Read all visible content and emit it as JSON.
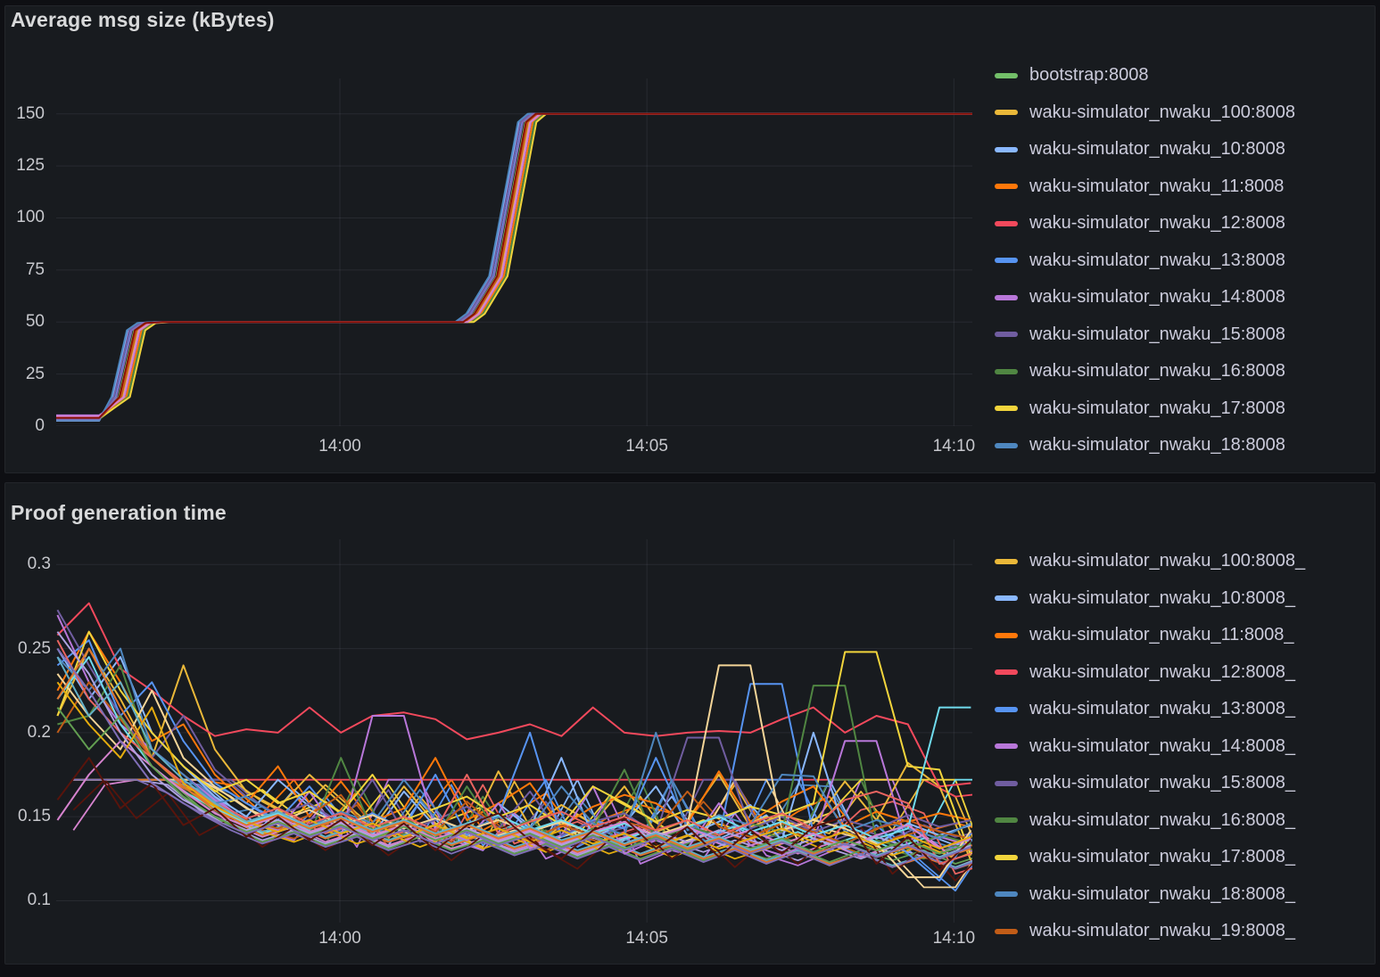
{
  "theme": {
    "page_bg": "#0e0f13",
    "panel_bg": "#181b1f",
    "panel_border": "#23262b",
    "title_color": "#d8d9da",
    "legend_text_color": "#ccccdc",
    "axis_text_color": "#c7c8cd",
    "grid_color": "rgba(204,204,220,0.09)"
  },
  "panels": [
    {
      "title": "Average msg size (kBytes)"
    },
    {
      "title": "Proof generation time"
    }
  ],
  "chart_data": [
    {
      "type": "line",
      "title": "Average msg size (kBytes)",
      "y_unit": "kBytes",
      "x_unit": "minutes relative to 14:00",
      "grid": true,
      "legend_position": "right",
      "xlim": [
        -4.62,
        10.3
      ],
      "ylim": [
        0,
        167
      ],
      "xticks": [
        {
          "t": 0,
          "label": "14:00"
        },
        {
          "t": 5,
          "label": "14:05"
        },
        {
          "t": 10,
          "label": "14:10"
        }
      ],
      "yticks": [
        {
          "v": 0,
          "label": "0"
        },
        {
          "v": 25,
          "label": "25"
        },
        {
          "v": 50,
          "label": "50"
        },
        {
          "v": 75,
          "label": "75"
        },
        {
          "v": 100,
          "label": "100"
        },
        {
          "v": 125,
          "label": "125"
        },
        {
          "v": 150,
          "label": "150"
        }
      ],
      "pattern_points": [
        [
          -4.62,
          "v0"
        ],
        [
          -3.92,
          "v0"
        ],
        [
          -3.6,
          14
        ],
        [
          -3.35,
          46
        ],
        [
          -3.18,
          49.5
        ],
        [
          -2.9,
          50
        ],
        [
          2.0,
          50
        ],
        [
          2.18,
          54
        ],
        [
          2.55,
          72
        ],
        [
          3.02,
          146
        ],
        [
          3.18,
          150
        ],
        [
          10.3,
          150
        ]
      ],
      "series": [
        {
          "label": "bootstrap:8008",
          "color": "#73BF69",
          "dx": 0.0,
          "v0": 4.8
        },
        {
          "label": "waku-simulator_nwaku_100:8008",
          "color": "#EAB839",
          "dx": 0.06,
          "v0": 3.9
        },
        {
          "label": "waku-simulator_nwaku_10:8008",
          "color": "#8AB8FF",
          "dx": -0.1,
          "v0": 2.6
        },
        {
          "label": "waku-simulator_nwaku_11:8008",
          "color": "#FF780A",
          "dx": 0.12,
          "v0": 3.4
        },
        {
          "label": "waku-simulator_nwaku_12:8008",
          "color": "#F2495C",
          "dx": 0.02,
          "v0": 4.4
        },
        {
          "label": "waku-simulator_nwaku_13:8008",
          "color": "#5794F2",
          "dx": -0.05,
          "v0": 3.8
        },
        {
          "label": "waku-simulator_nwaku_14:8008",
          "color": "#B877D9",
          "dx": 0.09,
          "v0": 5.2
        },
        {
          "label": "waku-simulator_nwaku_15:8008",
          "color": "#705DA0",
          "dx": -0.08,
          "v0": 4.1
        },
        {
          "label": "waku-simulator_nwaku_16:8008",
          "color": "#508642",
          "dx": 0.15,
          "v0": 3.2
        },
        {
          "label": "waku-simulator_nwaku_17:8008",
          "color": "#F2D53C",
          "dx": 0.18,
          "v0": 3.6
        },
        {
          "label": "waku-simulator_nwaku_18:8008",
          "color": "#4E87BF",
          "dx": -0.12,
          "v0": 2.9
        }
      ],
      "unlabeled_series": [
        {
          "color": "#C15C17",
          "dx": 0.04,
          "v0": 3.5
        },
        {
          "color": "#D683CE",
          "dx": 0.08,
          "v0": 4.6
        },
        {
          "color": "#806EB7",
          "dx": -0.04,
          "v0": 3.3
        },
        {
          "color": "#890F02",
          "dx": 0.01,
          "v0": 4.0
        }
      ]
    },
    {
      "type": "line",
      "title": "Proof generation time",
      "y_unit": "seconds",
      "x_unit": "minutes relative to 14:00",
      "grid": true,
      "legend_position": "right",
      "xlim": [
        -4.62,
        10.3
      ],
      "ylim": [
        0.087,
        0.315
      ],
      "xticks": [
        {
          "t": 0,
          "label": "14:00"
        },
        {
          "t": 5,
          "label": "14:05"
        },
        {
          "t": 10,
          "label": "14:10"
        }
      ],
      "yticks": [
        {
          "v": 0.1,
          "label": "0.1"
        },
        {
          "v": 0.15,
          "label": "0.15"
        },
        {
          "v": 0.2,
          "label": "0.2"
        },
        {
          "v": 0.25,
          "label": "0.25"
        },
        {
          "v": 0.3,
          "label": "0.3"
        }
      ],
      "x_start": -4.6,
      "x_step": 0.513,
      "render_echo": {
        "dx": 0.26,
        "dy": -0.006,
        "clamp_max": 0.178
      },
      "series": [
        {
          "label": "waku-simulator_nwaku_100:8008_",
          "color": "#EAB839",
          "values": [
            0.21,
            0.25,
            0.22,
            0.185,
            0.24,
            0.19,
            0.165,
            0.155,
            0.175,
            0.158,
            0.143,
            0.168,
            0.146,
            0.138,
            0.177,
            0.144,
            0.157,
            0.146,
            0.168,
            0.141,
            0.148,
            0.175,
            0.144,
            0.151,
            0.146,
            0.171,
            0.148,
            0.182,
            0.168,
            0.124
          ]
        },
        {
          "label": "waku-simulator_nwaku_10:8008_",
          "color": "#8AB8FF",
          "values": [
            0.25,
            0.22,
            0.245,
            0.2,
            0.18,
            0.162,
            0.15,
            0.172,
            0.156,
            0.147,
            0.139,
            0.165,
            0.144,
            0.136,
            0.158,
            0.143,
            0.185,
            0.138,
            0.146,
            0.168,
            0.139,
            0.147,
            0.157,
            0.136,
            0.2,
            0.141,
            0.133,
            0.146,
            0.139,
            0.145
          ]
        },
        {
          "label": "waku-simulator_nwaku_11:8008_",
          "color": "#FF780A",
          "values": [
            0.225,
            0.26,
            0.23,
            0.195,
            0.205,
            0.175,
            0.158,
            0.18,
            0.15,
            0.171,
            0.147,
            0.155,
            0.185,
            0.148,
            0.158,
            0.17,
            0.144,
            0.156,
            0.163,
            0.158,
            0.146,
            0.177,
            0.147,
            0.159,
            0.168,
            0.144,
            0.153,
            0.147,
            0.152,
            0.148
          ]
        },
        {
          "label": "waku-simulator_nwaku_12:8008_",
          "color": "#F2495C",
          "values": [
            0.258,
            0.277,
            0.238,
            0.225,
            0.21,
            0.198,
            0.202,
            0.2,
            0.215,
            0.2,
            0.21,
            0.212,
            0.208,
            0.196,
            0.2,
            0.205,
            0.198,
            0.215,
            0.2,
            0.198,
            0.2,
            0.201,
            0.2,
            0.208,
            0.215,
            0.2,
            0.21,
            0.205,
            0.168,
            0.17
          ]
        },
        {
          "label": "waku-simulator_nwaku_13:8008_",
          "color": "#5794F2",
          "values": [
            0.24,
            0.255,
            0.21,
            0.23,
            0.195,
            0.17,
            0.158,
            0.148,
            0.168,
            0.145,
            0.152,
            0.143,
            0.175,
            0.139,
            0.151,
            0.2,
            0.138,
            0.148,
            0.143,
            0.185,
            0.144,
            0.137,
            0.229,
            0.229,
            0.14,
            0.133,
            0.145,
            0.128,
            0.112,
            0.14
          ]
        },
        {
          "label": "waku-simulator_nwaku_14:8008_",
          "color": "#B877D9",
          "values": [
            0.27,
            0.23,
            0.205,
            0.19,
            0.175,
            0.16,
            0.148,
            0.142,
            0.165,
            0.138,
            0.21,
            0.21,
            0.142,
            0.136,
            0.158,
            0.131,
            0.139,
            0.168,
            0.128,
            0.136,
            0.131,
            0.158,
            0.133,
            0.127,
            0.135,
            0.195,
            0.195,
            0.132,
            0.138,
            0.133
          ]
        },
        {
          "label": "waku-simulator_nwaku_15:8008_",
          "color": "#705DA0",
          "values": [
            0.273,
            0.24,
            0.21,
            0.185,
            0.21,
            0.178,
            0.162,
            0.151,
            0.158,
            0.146,
            0.172,
            0.141,
            0.148,
            0.156,
            0.143,
            0.165,
            0.139,
            0.147,
            0.152,
            0.14,
            0.197,
            0.197,
            0.143,
            0.15,
            0.141,
            0.148,
            0.143,
            0.151,
            0.144,
            0.148
          ]
        },
        {
          "label": "waku-simulator_nwaku_16:8008_",
          "color": "#508642",
          "values": [
            0.205,
            0.21,
            0.24,
            0.185,
            0.168,
            0.152,
            0.144,
            0.151,
            0.139,
            0.185,
            0.142,
            0.15,
            0.137,
            0.168,
            0.14,
            0.148,
            0.134,
            0.143,
            0.178,
            0.136,
            0.144,
            0.139,
            0.146,
            0.141,
            0.228,
            0.228,
            0.136,
            0.131,
            0.139,
            0.134
          ]
        },
        {
          "label": "waku-simulator_nwaku_17:8008_",
          "color": "#F2D53C",
          "values": [
            0.21,
            0.26,
            0.225,
            0.2,
            0.18,
            0.165,
            0.172,
            0.158,
            0.165,
            0.152,
            0.175,
            0.148,
            0.155,
            0.162,
            0.15,
            0.157,
            0.145,
            0.168,
            0.158,
            0.147,
            0.154,
            0.149,
            0.156,
            0.151,
            0.158,
            0.248,
            0.248,
            0.18,
            0.178,
            0.127
          ]
        },
        {
          "label": "waku-simulator_nwaku_18:8008_",
          "color": "#4E87BF",
          "values": [
            0.245,
            0.225,
            0.25,
            0.19,
            0.175,
            0.158,
            0.162,
            0.15,
            0.144,
            0.153,
            0.146,
            0.172,
            0.149,
            0.141,
            0.15,
            0.143,
            0.168,
            0.146,
            0.139,
            0.2,
            0.142,
            0.151,
            0.145,
            0.175,
            0.174,
            0.141,
            0.148,
            0.143,
            0.137,
            0.146
          ]
        },
        {
          "label": "waku-simulator_nwaku_19:8008_",
          "color": "#C15C17",
          "values": [
            0.2,
            0.23,
            0.208,
            0.185,
            0.17,
            0.156,
            0.148,
            0.143,
            0.151,
            0.163,
            0.138,
            0.147,
            0.141,
            0.159,
            0.143,
            0.136,
            0.145,
            0.139,
            0.147,
            0.142,
            0.165,
            0.144,
            0.138,
            0.146,
            0.141,
            0.134,
            0.143,
            0.148,
            0.141,
            0.137
          ]
        }
      ],
      "unlabeled_series": [
        {
          "color": "#F4D598",
          "values": [
            0.235,
            0.21,
            0.19,
            0.225,
            0.185,
            0.168,
            0.155,
            0.147,
            0.154,
            0.145,
            0.151,
            0.143,
            0.149,
            0.142,
            0.148,
            0.141,
            0.147,
            0.14,
            0.146,
            0.139,
            0.145,
            0.24,
            0.24,
            0.142,
            0.148,
            0.143,
            0.134,
            0.114,
            0.114,
            0.142
          ]
        },
        {
          "color": "#70DBED",
          "values": [
            0.22,
            0.245,
            0.205,
            0.18,
            0.165,
            0.155,
            0.146,
            0.152,
            0.143,
            0.149,
            0.141,
            0.147,
            0.139,
            0.146,
            0.151,
            0.142,
            0.148,
            0.14,
            0.146,
            0.138,
            0.144,
            0.15,
            0.141,
            0.147,
            0.139,
            0.145,
            0.137,
            0.143,
            0.215,
            0.215
          ]
        },
        {
          "color": "#EA6460",
          "values": [
            0.255,
            0.22,
            0.2,
            0.185,
            0.17,
            0.158,
            0.149,
            0.155,
            0.146,
            0.152,
            0.144,
            0.15,
            0.142,
            0.175,
            0.14,
            0.147,
            0.153,
            0.144,
            0.15,
            0.142,
            0.148,
            0.139,
            0.146,
            0.152,
            0.143,
            0.16,
            0.165,
            0.158,
            0.122,
            0.128
          ]
        },
        {
          "color": "#D683CE",
          "values": [
            0.148,
            0.175,
            0.195,
            0.18,
            0.165,
            0.152,
            0.144,
            0.15,
            0.141,
            0.147,
            0.139,
            0.145,
            0.137,
            0.143,
            0.136,
            0.142,
            0.134,
            0.141,
            0.147,
            0.138,
            0.144,
            0.136,
            0.142,
            0.134,
            0.14,
            0.132,
            0.139,
            0.145,
            0.131,
            0.137
          ]
        },
        {
          "color": "#AEA2E0",
          "values": [
            0.26,
            0.235,
            0.2,
            0.175,
            0.16,
            0.15,
            0.142,
            0.148,
            0.14,
            0.146,
            0.138,
            0.144,
            0.136,
            0.143,
            0.135,
            0.141,
            0.133,
            0.14,
            0.134,
            0.141,
            0.135,
            0.142,
            0.136,
            0.13,
            0.137,
            0.131,
            0.138,
            0.132,
            0.126,
            0.133
          ]
        },
        {
          "color": "#629E51",
          "values": [
            0.215,
            0.19,
            0.21,
            0.18,
            0.162,
            0.15,
            0.141,
            0.147,
            0.139,
            0.145,
            0.137,
            0.144,
            0.136,
            0.142,
            0.134,
            0.14,
            0.132,
            0.139,
            0.131,
            0.138,
            0.13,
            0.137,
            0.131,
            0.137,
            0.129,
            0.136,
            0.13,
            0.136,
            0.128,
            0.134
          ]
        },
        {
          "color": "#E5AC0E",
          "values": [
            0.23,
            0.205,
            0.185,
            0.215,
            0.17,
            0.156,
            0.147,
            0.141,
            0.148,
            0.14,
            0.146,
            0.138,
            0.145,
            0.137,
            0.143,
            0.135,
            0.142,
            0.134,
            0.14,
            0.132,
            0.139,
            0.131,
            0.137,
            0.143,
            0.135,
            0.141,
            0.133,
            0.139,
            0.131,
            0.138
          ]
        },
        {
          "color": "#64B0C8",
          "values": [
            0.245,
            0.21,
            0.23,
            0.19,
            0.172,
            0.158,
            0.147,
            0.153,
            0.144,
            0.15,
            0.142,
            0.148,
            0.14,
            0.146,
            0.138,
            0.144,
            0.136,
            0.142,
            0.134,
            0.14,
            0.132,
            0.138,
            0.13,
            0.136,
            0.128,
            0.134,
            0.127,
            0.133,
            0.126,
            0.132
          ]
        },
        {
          "color": "#E0752D",
          "values": [
            0.22,
            0.25,
            0.215,
            0.185,
            0.168,
            0.154,
            0.145,
            0.151,
            0.143,
            0.149,
            0.141,
            0.147,
            0.139,
            0.145,
            0.137,
            0.143,
            0.135,
            0.141,
            0.133,
            0.139,
            0.131,
            0.137,
            0.129,
            0.135,
            0.128,
            0.134,
            0.126,
            0.132,
            0.125,
            0.131
          ]
        },
        {
          "color": "#58140C",
          "values": [
            0.16,
            0.185,
            0.155,
            0.17,
            0.145,
            0.155,
            0.138,
            0.15,
            0.136,
            0.148,
            0.133,
            0.146,
            0.13,
            0.145,
            0.152,
            0.136,
            0.125,
            0.142,
            0.149,
            0.131,
            0.144,
            0.126,
            0.142,
            0.128,
            0.144,
            0.15,
            0.122,
            0.138,
            0.118,
            0.136
          ]
        },
        {
          "color": "#806EB7",
          "values": [
            0.25,
            0.225,
            0.195,
            0.17,
            0.158,
            0.148,
            0.14,
            0.146,
            0.138,
            0.144,
            0.136,
            0.142,
            0.134,
            0.141,
            0.133,
            0.139,
            0.131,
            0.138,
            0.13,
            0.137,
            0.129,
            0.136,
            0.128,
            0.135,
            0.127,
            0.134,
            0.126,
            0.133,
            0.125,
            0.132
          ]
        }
      ]
    }
  ]
}
